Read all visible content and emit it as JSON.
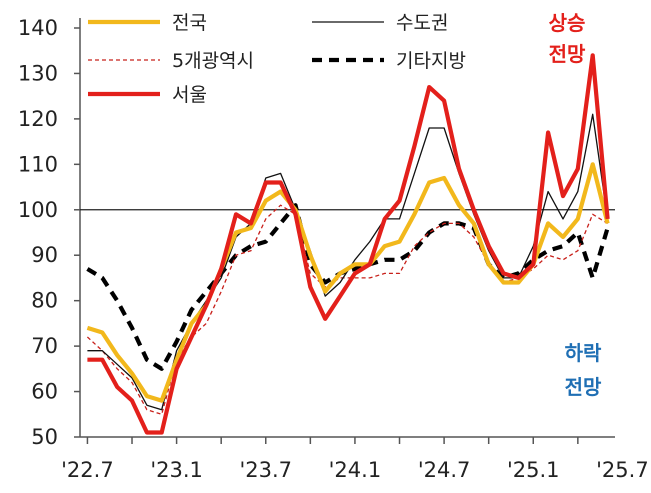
{
  "chart_data": {
    "type": "line",
    "x_tick_labels": [
      "'22.7",
      "'23.1",
      "'23.7",
      "'24.1",
      "'24.7",
      "'25.1",
      "'25.7"
    ],
    "x_tick_positions": [
      0,
      6,
      12,
      18,
      24,
      30,
      36
    ],
    "ylim": [
      50,
      140
    ],
    "yticks": [
      50,
      60,
      70,
      80,
      90,
      100,
      110,
      120,
      130,
      140
    ],
    "reference_line": 100,
    "grid": false,
    "legend_position": "top",
    "annotations": {
      "up": [
        "상승",
        "전망"
      ],
      "down": [
        "하락",
        "전망"
      ]
    },
    "annotation_colors": {
      "up": "#e3201b",
      "down": "#1f6fb4"
    },
    "series": [
      {
        "name": "전국",
        "color": "#f2b81c",
        "style": "solid-thick",
        "values": [
          74,
          73,
          68,
          64,
          59,
          58,
          67,
          75,
          79,
          87,
          95,
          96,
          102,
          104,
          100,
          90,
          82,
          86,
          88,
          88,
          92,
          93,
          99,
          106,
          107,
          101,
          97,
          88,
          84,
          84,
          88,
          97,
          94,
          98,
          110,
          97
        ]
      },
      {
        "name": "수도권",
        "color": "#111111",
        "style": "thin",
        "values": [
          69,
          69,
          66,
          63,
          57,
          56,
          69,
          75,
          80,
          85,
          94,
          97,
          107,
          108,
          100,
          91,
          81,
          84,
          89,
          93,
          98,
          98,
          108,
          118,
          118,
          108,
          99,
          91,
          85,
          85,
          92,
          104,
          98,
          104,
          121,
          98
        ]
      },
      {
        "name": "5개광역시",
        "color": "#c8201a",
        "style": "dashed-thin",
        "values": [
          72,
          69,
          65,
          62,
          56,
          55,
          67,
          72,
          75,
          82,
          90,
          91,
          98,
          101,
          99,
          86,
          83,
          85,
          85,
          85,
          86,
          86,
          92,
          95,
          97,
          97,
          94,
          88,
          84,
          85,
          87,
          90,
          89,
          91,
          99,
          97
        ]
      },
      {
        "name": "서울",
        "color": "#e3201b",
        "style": "solid-thick",
        "values": [
          67,
          67,
          61,
          58,
          51,
          51,
          65,
          72,
          79,
          87,
          99,
          97,
          106,
          106,
          99,
          83,
          76,
          81,
          86,
          88,
          98,
          102,
          114,
          127,
          124,
          109,
          100,
          92,
          86,
          85,
          88,
          117,
          103,
          109,
          134,
          98
        ]
      },
      {
        "name": "기타지방",
        "color": "#000000",
        "style": "dashed-thick",
        "values": [
          87,
          85,
          80,
          74,
          67,
          65,
          71,
          78,
          82,
          86,
          90,
          92,
          93,
          97,
          101,
          88,
          84,
          86,
          87,
          88,
          89,
          89,
          91,
          95,
          97,
          97,
          96,
          88,
          85,
          86,
          89,
          91,
          92,
          95,
          85,
          96
        ]
      }
    ]
  }
}
